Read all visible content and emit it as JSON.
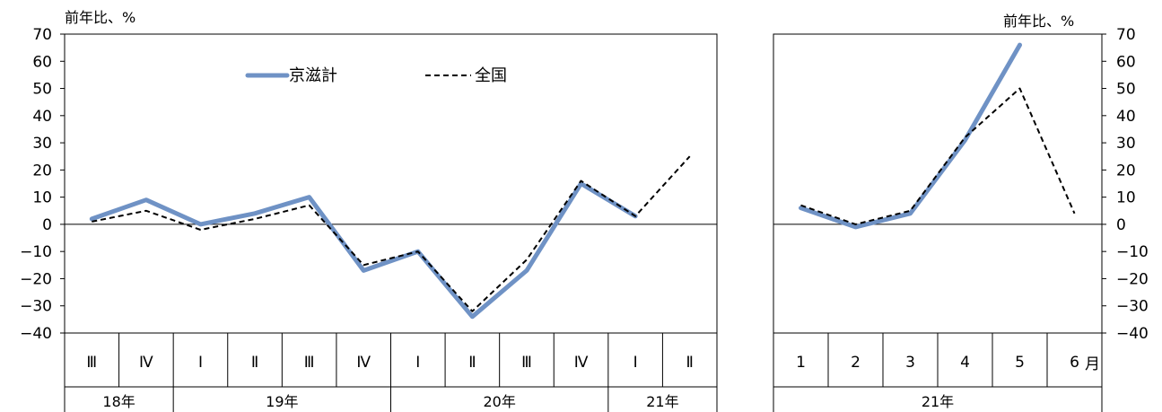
{
  "chart_data": [
    {
      "type": "line",
      "ylabel": "前年比、%",
      "ylim": [
        -40,
        70
      ],
      "yticks": [
        70,
        60,
        50,
        40,
        30,
        20,
        10,
        0,
        -10,
        -20,
        -30,
        -40
      ],
      "categories": [
        "Ⅲ",
        "Ⅳ",
        "Ⅰ",
        "Ⅱ",
        "Ⅲ",
        "Ⅳ",
        "Ⅰ",
        "Ⅱ",
        "Ⅲ",
        "Ⅳ",
        "Ⅰ",
        "Ⅱ"
      ],
      "groups": [
        {
          "label": "18年",
          "span": 2
        },
        {
          "label": "19年",
          "span": 4
        },
        {
          "label": "20年",
          "span": 4
        },
        {
          "label": "21年",
          "span": 2
        }
      ],
      "series": [
        {
          "name": "京滋計",
          "color": "#6f92c5",
          "style": "solid",
          "values": [
            2,
            9,
            0,
            4,
            10,
            -17,
            -10,
            -34,
            -17,
            15,
            3,
            null
          ]
        },
        {
          "name": "全国",
          "color": "#000000",
          "style": "dashed",
          "values": [
            1,
            5,
            -2,
            2,
            7,
            -15,
            -10,
            -32,
            -13,
            16,
            3,
            25
          ]
        }
      ],
      "legend": "top-center"
    },
    {
      "type": "line",
      "ylabel": "前年比、%",
      "ylim": [
        -40,
        70
      ],
      "yticks": [
        70,
        60,
        50,
        40,
        30,
        20,
        10,
        0,
        -10,
        -20,
        -30,
        -40
      ],
      "categories": [
        "1",
        "2",
        "3",
        "4",
        "5",
        "6"
      ],
      "category_suffix": "月",
      "groups": [
        {
          "label": "21年",
          "span": 6
        }
      ],
      "series": [
        {
          "name": "京滋計",
          "color": "#6f92c5",
          "style": "solid",
          "values": [
            6,
            -1,
            4,
            31,
            66,
            null
          ]
        },
        {
          "name": "全国",
          "color": "#000000",
          "style": "dashed",
          "values": [
            7,
            0,
            5,
            32,
            50,
            4
          ]
        }
      ]
    }
  ]
}
